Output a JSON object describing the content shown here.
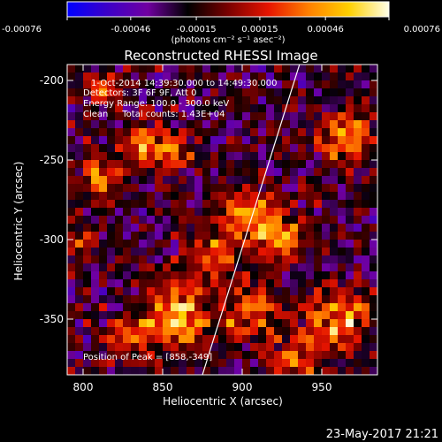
{
  "colorbar": {
    "tick_labels": [
      "-0.00076",
      "-0.00046",
      "-0.00015",
      "0.00015",
      "0.00046",
      "0.00076"
    ],
    "tick_values": [
      -0.00076,
      -0.00046,
      -0.00015,
      0.00015,
      0.00046,
      0.00076
    ],
    "range": [
      -0.00076,
      0.00076
    ],
    "units_label": "(photons cm⁻² s⁻¹ asec⁻²)",
    "colors": [
      "#0000ff",
      "#3c00c8",
      "#7000a0",
      "#000000",
      "#7a0000",
      "#e61400",
      "#ff8000",
      "#ffd000",
      "#ffffe8"
    ]
  },
  "title": "Reconstructed RHESSI Image",
  "info_lines": [
    "1-Oct-2014 14:39:30.000 to 14:49:30.000",
    "Detectors: 3F 6F 9F, Att 0",
    "Energy Range: 100.0 - 300.0 keV",
    "Clean     Total counts: 1.43E+04"
  ],
  "peak_label": "Position of Peak = [858,-349]",
  "footer_date": "23-May-2017 21:21",
  "chart_data": {
    "type": "heatmap",
    "title": "Reconstructed RHESSI Image",
    "xlabel": "Heliocentric X (arcsec)",
    "ylabel": "Heliocentric Y (arcsec)",
    "xlim": [
      790,
      985
    ],
    "ylim": [
      -385,
      -190
    ],
    "xticks": [
      800,
      850,
      900,
      950
    ],
    "xtick_labels": [
      "800",
      "850",
      "900",
      "950"
    ],
    "yticks": [
      -200,
      -250,
      -300,
      -350
    ],
    "ytick_labels": [
      "-200",
      "-250",
      "-300",
      "-350"
    ],
    "limb_line": {
      "x1": 875,
      "y1": -385,
      "x2": 936,
      "y2": -190
    },
    "peak": {
      "x": 858,
      "y": -349
    },
    "sources": [
      {
        "x": 815,
        "y": -205,
        "amp": 0.5,
        "sigma": 8
      },
      {
        "x": 835,
        "y": -240,
        "amp": 0.75,
        "sigma": 9
      },
      {
        "x": 855,
        "y": -245,
        "amp": 0.7,
        "sigma": 9
      },
      {
        "x": 810,
        "y": -262,
        "amp": 0.65,
        "sigma": 9
      },
      {
        "x": 905,
        "y": -285,
        "amp": 0.8,
        "sigma": 12
      },
      {
        "x": 925,
        "y": -300,
        "amp": 0.7,
        "sigma": 10
      },
      {
        "x": 880,
        "y": -310,
        "amp": 0.65,
        "sigma": 10
      },
      {
        "x": 965,
        "y": -235,
        "amp": 0.75,
        "sigma": 11
      },
      {
        "x": 960,
        "y": -350,
        "amp": 0.85,
        "sigma": 13
      },
      {
        "x": 858,
        "y": -349,
        "amp": 1.0,
        "sigma": 14
      },
      {
        "x": 905,
        "y": -345,
        "amp": 0.7,
        "sigma": 12
      },
      {
        "x": 935,
        "y": -375,
        "amp": 0.6,
        "sigma": 10
      },
      {
        "x": 825,
        "y": -365,
        "amp": 0.5,
        "sigma": 10
      },
      {
        "x": 800,
        "y": -300,
        "amp": 0.4,
        "sigma": 9
      }
    ]
  }
}
